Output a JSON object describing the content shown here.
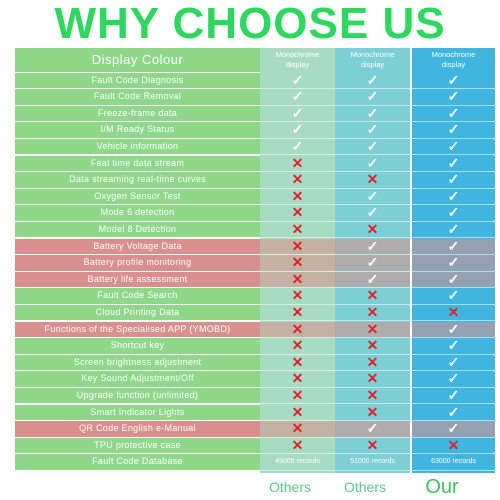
{
  "title": "WHY CHOOSE US",
  "colors": {
    "title": "#2ed85f",
    "row_green": "#8fd88a",
    "row_red": "#d98f8d",
    "col1": "#a8dcc2",
    "col2": "#7dcfd6",
    "col3": "#3fb5df",
    "check": "#ffffff",
    "cross": "#e0202a"
  },
  "header": {
    "label": "Display Colour",
    "columns": [
      {
        "line1": "Monochrome",
        "line2": "display"
      },
      {
        "line1": "Monochrome",
        "line2": "display"
      },
      {
        "line1": "Monochrome",
        "line2": "display"
      }
    ]
  },
  "rows": [
    {
      "label": "Fault Code Diagnosis",
      "highlight": false,
      "values": [
        "check",
        "check",
        "check"
      ]
    },
    {
      "label": "Fault Code Removal",
      "highlight": false,
      "values": [
        "check",
        "check",
        "check"
      ]
    },
    {
      "label": "Freeze-frame data",
      "highlight": false,
      "values": [
        "check",
        "check",
        "check"
      ]
    },
    {
      "label": "I/M Ready Status",
      "highlight": false,
      "values": [
        "check",
        "check",
        "check"
      ]
    },
    {
      "label": "Vehicle information",
      "highlight": false,
      "values": [
        "check",
        "check",
        "check"
      ]
    },
    {
      "label": "Feal time data stream",
      "highlight": false,
      "values": [
        "cross",
        "check",
        "check"
      ]
    },
    {
      "label": "Data streaming real-time curves",
      "highlight": false,
      "values": [
        "cross",
        "cross",
        "check"
      ]
    },
    {
      "label": "Oxygen Sensor Test",
      "highlight": false,
      "values": [
        "cross",
        "check",
        "check"
      ]
    },
    {
      "label": "Mode 6 detection",
      "highlight": false,
      "values": [
        "cross",
        "check",
        "check"
      ]
    },
    {
      "label": "Model 8 Detection",
      "highlight": false,
      "values": [
        "cross",
        "cross",
        "check"
      ]
    },
    {
      "label": "Battery Voltage Data",
      "highlight": true,
      "values": [
        "cross",
        "check",
        "check"
      ]
    },
    {
      "label": "Battery profile monitoring",
      "highlight": true,
      "values": [
        "cross",
        "check",
        "check"
      ]
    },
    {
      "label": "Battery life assessment",
      "highlight": true,
      "values": [
        "cross",
        "check",
        "check"
      ]
    },
    {
      "label": "Fault Code Search",
      "highlight": false,
      "values": [
        "cross",
        "cross",
        "check"
      ]
    },
    {
      "label": "Cloud Printing Data",
      "highlight": false,
      "values": [
        "cross",
        "cross",
        "cross"
      ]
    },
    {
      "label": "Functions of the Specialised APP (YMOBD)",
      "highlight": true,
      "values": [
        "cross",
        "cross",
        "check"
      ]
    },
    {
      "label": "Shortcut key",
      "highlight": false,
      "values": [
        "cross",
        "cross",
        "check"
      ]
    },
    {
      "label": "Screen brightness adjustment",
      "highlight": false,
      "values": [
        "cross",
        "cross",
        "check"
      ]
    },
    {
      "label": "Key Sound Adjustment/Off",
      "highlight": false,
      "values": [
        "cross",
        "cross",
        "check"
      ]
    },
    {
      "label": "Upgrade function (unlimited)",
      "highlight": false,
      "values": [
        "cross",
        "cross",
        "check"
      ]
    },
    {
      "label": "Smart Indicator Lights",
      "highlight": false,
      "values": [
        "cross",
        "cross",
        "check"
      ]
    },
    {
      "label": "QR Code English e-Manual",
      "highlight": true,
      "values": [
        "cross",
        "check",
        "check"
      ]
    },
    {
      "label": "TPU protective case",
      "highlight": false,
      "values": [
        "cross",
        "cross",
        "cross"
      ]
    },
    {
      "label": "Fault Code Database",
      "highlight": false,
      "values": [
        "49000 records",
        "51000 records",
        "63000 records"
      ]
    }
  ],
  "footer": [
    "Others",
    "Others",
    "Our"
  ]
}
